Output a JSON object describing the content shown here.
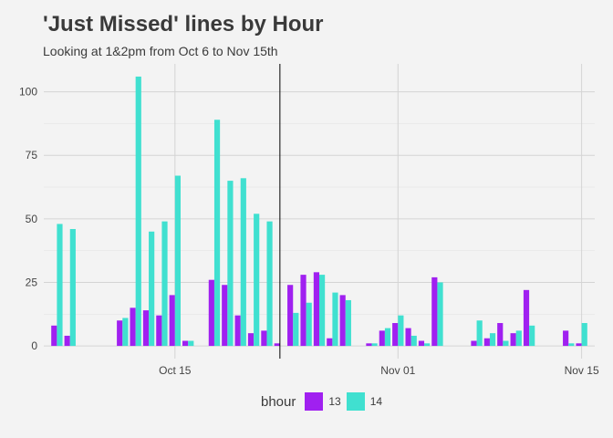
{
  "chart_data": {
    "type": "bar",
    "title": "'Just Missed' lines by Hour",
    "subtitle": "Looking at 1&2pm from Oct 6 to Nov 15th",
    "xlabel": "",
    "ylabel": "",
    "ylim": [
      -5,
      111
    ],
    "xlim": [
      "2014-10-05",
      "2014-11-16"
    ],
    "x_ticks": [
      {
        "date": "2014-10-15",
        "label": "Oct 15"
      },
      {
        "date": "2014-11-01",
        "label": "Nov 01"
      },
      {
        "date": "2014-11-15",
        "label": "Nov 15"
      }
    ],
    "y_ticks": [
      0,
      25,
      50,
      75,
      100
    ],
    "grid": true,
    "legend": {
      "title": "bhour",
      "placement": "bottom"
    },
    "vline": {
      "date": "2014-10-23"
    },
    "dates": [
      "2014-10-06",
      "2014-10-07",
      "2014-10-08",
      "2014-10-09",
      "2014-10-10",
      "2014-10-11",
      "2014-10-12",
      "2014-10-13",
      "2014-10-14",
      "2014-10-15",
      "2014-10-16",
      "2014-10-17",
      "2014-10-18",
      "2014-10-19",
      "2014-10-20",
      "2014-10-21",
      "2014-10-22",
      "2014-10-23",
      "2014-10-24",
      "2014-10-25",
      "2014-10-26",
      "2014-10-27",
      "2014-10-28",
      "2014-10-29",
      "2014-10-30",
      "2014-10-31",
      "2014-11-01",
      "2014-11-02",
      "2014-11-03",
      "2014-11-04",
      "2014-11-05",
      "2014-11-06",
      "2014-11-07",
      "2014-11-08",
      "2014-11-09",
      "2014-11-10",
      "2014-11-11",
      "2014-11-12",
      "2014-11-13",
      "2014-11-14",
      "2014-11-15"
    ],
    "series": [
      {
        "name": "13",
        "color": "#a020f0",
        "values": [
          8,
          4,
          0,
          0,
          0,
          10,
          15,
          14,
          12,
          20,
          2,
          0,
          26,
          24,
          12,
          5,
          6,
          1,
          24,
          28,
          29,
          3,
          20,
          0,
          1,
          6,
          9,
          7,
          2,
          27,
          0,
          0,
          2,
          3,
          9,
          5,
          22,
          0,
          0,
          6,
          1
        ]
      },
      {
        "name": "14",
        "color": "#40e0d0",
        "values": [
          48,
          46,
          0,
          0,
          0,
          11,
          106,
          45,
          49,
          67,
          2,
          0,
          89,
          65,
          66,
          52,
          49,
          0,
          13,
          17,
          28,
          21,
          18,
          0,
          1,
          7,
          12,
          4,
          1,
          25,
          0,
          0,
          10,
          5,
          2,
          6,
          8,
          0,
          0,
          1,
          9
        ]
      }
    ]
  }
}
